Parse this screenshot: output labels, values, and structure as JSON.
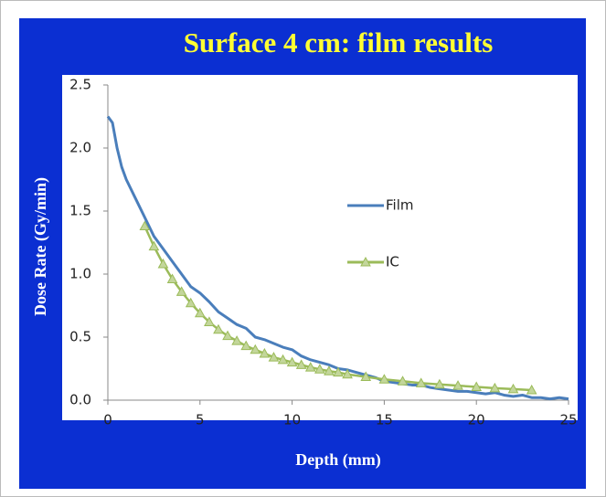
{
  "chart_data": {
    "type": "line",
    "title": "Surface 4 cm: film results",
    "xlabel": "Depth (mm)",
    "ylabel": "Dose Rate (Gy/min)",
    "xlim": [
      0,
      25
    ],
    "xticks": [
      0,
      5,
      10,
      15,
      20,
      25
    ],
    "ylim": [
      0,
      2.5
    ],
    "yticks": [
      {
        "value": 0,
        "label": "0.0"
      },
      0.5,
      {
        "value": 1,
        "label": "1.0"
      },
      1.5,
      {
        "value": 2,
        "label": "2.0"
      },
      2.5
    ],
    "legend": "right",
    "series": [
      {
        "name": "Film",
        "color": "#4a7ebb",
        "marker": "none",
        "x": [
          0,
          0.25,
          0.5,
          0.75,
          1,
          1.5,
          2,
          2.5,
          3,
          3.5,
          4,
          4.5,
          5,
          5.5,
          6,
          6.5,
          7,
          7.5,
          8,
          8.5,
          9,
          9.5,
          10,
          10.5,
          11,
          11.5,
          12,
          12.5,
          13,
          13.5,
          14,
          14.5,
          15,
          15.5,
          16,
          16.5,
          17,
          17.5,
          18,
          18.5,
          19,
          19.5,
          20,
          20.5,
          21,
          21.5,
          22,
          22.5,
          23,
          23.5,
          24,
          24.5,
          25
        ],
        "values": [
          2.25,
          2.2,
          2.0,
          1.85,
          1.75,
          1.6,
          1.45,
          1.3,
          1.2,
          1.1,
          1.0,
          0.9,
          0.85,
          0.78,
          0.7,
          0.65,
          0.6,
          0.57,
          0.5,
          0.48,
          0.45,
          0.42,
          0.4,
          0.35,
          0.32,
          0.3,
          0.28,
          0.25,
          0.24,
          0.22,
          0.2,
          0.18,
          0.15,
          0.14,
          0.13,
          0.12,
          0.12,
          0.1,
          0.09,
          0.08,
          0.07,
          0.07,
          0.06,
          0.05,
          0.06,
          0.04,
          0.03,
          0.04,
          0.02,
          0.02,
          0.01,
          0.02,
          0.01
        ]
      },
      {
        "name": "IC",
        "color": "#9bbb59",
        "marker": "triangle",
        "x": [
          2,
          2.5,
          3,
          3.5,
          4,
          4.5,
          5,
          5.5,
          6,
          6.5,
          7,
          7.5,
          8,
          8.5,
          9,
          9.5,
          10,
          10.5,
          11,
          11.5,
          12,
          12.5,
          13,
          14,
          15,
          16,
          17,
          18,
          19,
          20,
          21,
          22,
          23
        ],
        "values": [
          1.38,
          1.22,
          1.08,
          0.96,
          0.86,
          0.77,
          0.69,
          0.62,
          0.56,
          0.51,
          0.47,
          0.43,
          0.4,
          0.37,
          0.34,
          0.32,
          0.3,
          0.28,
          0.26,
          0.245,
          0.23,
          0.22,
          0.205,
          0.185,
          0.165,
          0.15,
          0.135,
          0.125,
          0.115,
          0.105,
          0.095,
          0.088,
          0.08
        ]
      }
    ]
  }
}
